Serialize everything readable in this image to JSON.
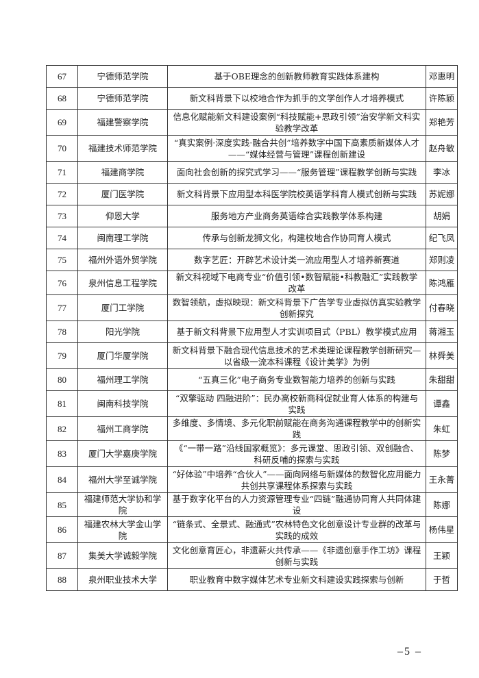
{
  "rows": [
    {
      "no": "67",
      "school": "宁德师范学院",
      "title": "基于OBE理念的创新教师教育实践体系建构",
      "name": "邓惠明"
    },
    {
      "no": "68",
      "school": "宁德师范学院",
      "title": "新文科背景下以校地合作为抓手的文学创作人才培养模式",
      "name": "许陈颖"
    },
    {
      "no": "69",
      "school": "福建警察学院",
      "title": "信息化赋能新文科建设案例“科技赋能+思政引领”治安学新文科实验教学改革",
      "name": "郑艳芳"
    },
    {
      "no": "70",
      "school": "福建技术师范学院",
      "title": "“真实案例·深度实践·融合共创”培养数字中国下高素质新媒体人才——“媒体经营与管理”课程创新建设",
      "name": "赵舟敏"
    },
    {
      "no": "71",
      "school": "福建商学院",
      "title": "面向社会创新的探究式学习——“服务管理”课程教学创新与实践",
      "name": "李冰"
    },
    {
      "no": "72",
      "school": "厦门医学院",
      "title": "新文科背景下应用型本科医学院校英语学科育人模式创新与实践",
      "name": "苏妮娜"
    },
    {
      "no": "73",
      "school": "仰恩大学",
      "title": "服务地方产业商务英语综合实践教学体系构建",
      "name": "胡娟"
    },
    {
      "no": "74",
      "school": "闽南理工学院",
      "title": "传承与创新龙狮文化，构建校地合作协同育人模式",
      "name": "纪飞凤"
    },
    {
      "no": "75",
      "school": "福州外语外贸学院",
      "title": "数字艺匠：开辟艺术设计类一流应用型人才培养新赛道",
      "name": "郑则凌"
    },
    {
      "no": "76",
      "school": "泉州信息工程学院",
      "title": "新文科视域下电商专业“价值引领•数智赋能•科教融汇”实践教学改革",
      "name": "陈鸿雁"
    },
    {
      "no": "77",
      "school": "厦门工学院",
      "title": "数智领航，虚拟映现：新文科背景下广告学专业虚拟仿真实验教学创新探究",
      "name": "付春晓"
    },
    {
      "no": "78",
      "school": "阳光学院",
      "title": "基于新文科背景下应用型人才实训项目式（PBL）教学模式应用",
      "name": "蒋湘玉"
    },
    {
      "no": "79",
      "school": "厦门华厦学院",
      "title": "新文科背景下融合现代信息技术的艺术类理论课程教学创新研究—以省级一流本科课程《设计美学》为例",
      "name": "林舜美"
    },
    {
      "no": "80",
      "school": "福州理工学院",
      "title": "“五真三化”电子商务专业数智能力培养的创新与实践",
      "name": "朱甜甜"
    },
    {
      "no": "81",
      "school": "闽南科技学院",
      "title": "“双擎驱动 四融进阶”：民办高校新商科促就业育人体系的构建与实践",
      "name": "谭鑫"
    },
    {
      "no": "82",
      "school": "福州工商学院",
      "title": "多维度、多情境、多元化职前赋能在商务沟通课程教学中的创新实践",
      "name": "朱虹"
    },
    {
      "no": "83",
      "school": "厦门大学嘉庚学院",
      "title": "《“一带一路”沿线国家概览》：多元课堂、思政引领、双创融合、科研反哺的探索与实践",
      "name": "陈梦"
    },
    {
      "no": "84",
      "school": "福州大学至诚学院",
      "title": "“好体验”中培养“合伙人”——面向网络与新媒体的数智化应用能力共创共享课程体系探索与实践",
      "name": "王永菁"
    },
    {
      "no": "85",
      "school": "福建师范大学协和学院",
      "title": "基于数字化平台的人力资源管理专业“四链”融通协同育人共同体建设",
      "name": "陈娜"
    },
    {
      "no": "86",
      "school": "福建农林大学金山学院",
      "title": "“链条式、全景式、融通式”农林特色文化创意设计专业群的改革与实践的成效",
      "name": "杨伟星"
    },
    {
      "no": "87",
      "school": "集美大学诚毅学院",
      "title": "文化创意育匠心，非遗薪火共传承——《非遗创意手作工坊》课程创新与实践",
      "name": "王颖"
    },
    {
      "no": "88",
      "school": "泉州职业技术大学",
      "title": "职业教育中数字媒体艺术专业新文科建设实践探索与创新",
      "name": "于哲"
    }
  ],
  "page_number": "–5 –"
}
